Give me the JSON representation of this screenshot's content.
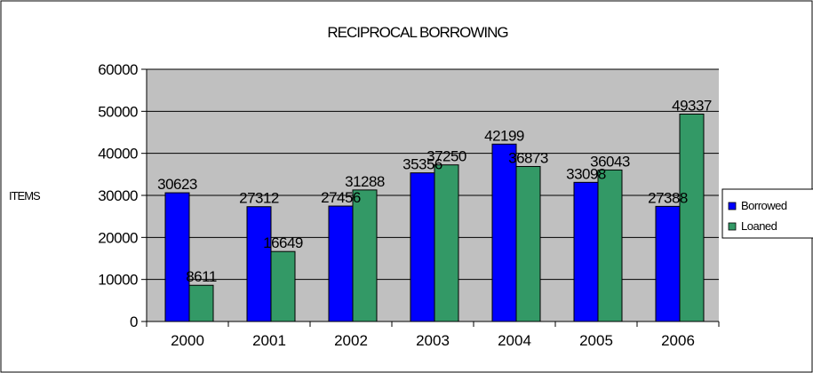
{
  "chart_data": {
    "type": "bar",
    "title": "RECIPROCAL BORROWING",
    "xlabel": "",
    "ylabel": "ITEMS",
    "categories": [
      "2000",
      "2001",
      "2002",
      "2003",
      "2004",
      "2005",
      "2006"
    ],
    "series": [
      {
        "name": "Borrowed",
        "values": [
          30623,
          27312,
          27456,
          35356,
          42199,
          33098,
          27388
        ]
      },
      {
        "name": "Loaned",
        "values": [
          8611,
          16649,
          31288,
          37250,
          36873,
          36043,
          49337
        ]
      }
    ],
    "ylim": [
      0,
      60000
    ],
    "yticks": [
      "0",
      "10000",
      "20000",
      "30000",
      "40000",
      "50000",
      "60000"
    ],
    "grid": true,
    "legend_position": "right",
    "colors": {
      "Borrowed": "#0000ff",
      "Loaned": "#339966",
      "plot_background": "#c0c0c0",
      "grid": "#000000"
    }
  }
}
